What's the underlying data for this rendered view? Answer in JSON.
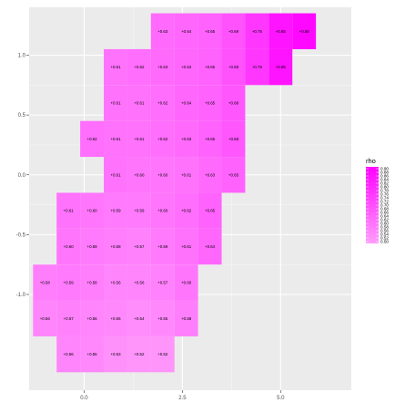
{
  "chart_data": {
    "type": "heatmap",
    "title": "",
    "xlabel": "",
    "ylabel": "",
    "xlim": [
      -1.4,
      6.8
    ],
    "ylim": [
      -1.8,
      1.4
    ],
    "x_ticks": [
      0.0,
      2.5,
      5.0
    ],
    "x_tick_labels": [
      "0.0",
      "2.5",
      "5.0"
    ],
    "y_ticks": [
      -1.0,
      -0.5,
      0.0,
      0.5,
      1.0
    ],
    "y_tick_labels": [
      "-1.0",
      "-0.5",
      "0.0",
      "0.5",
      "1.0"
    ],
    "grid": true,
    "legend": {
      "title": "rho",
      "position": "right",
      "labels": [
        "0.90",
        "0.88",
        "0.86",
        "0.84",
        "0.82",
        "0.80",
        "0.78",
        "0.76",
        "0.74",
        "0.72",
        "0.70",
        "0.68",
        "0.66",
        "0.64",
        "0.62",
        "0.60",
        "0.58",
        "0.56",
        "0.54",
        "0.52",
        "0.50"
      ]
    },
    "colors": {
      "low": "#ff9dfb",
      "high": "#ff00ff",
      "panel": "#ebebeb",
      "grid": "#ffffff"
    },
    "rows": [
      {
        "y": 1.2,
        "cells": [
          {
            "x": 2.0,
            "value": 0.63,
            "label": "+0.63"
          },
          {
            "x": 2.6,
            "value": 0.64,
            "label": "+0.64"
          },
          {
            "x": 3.2,
            "value": 0.65,
            "label": "+0.65"
          },
          {
            "x": 3.8,
            "value": 0.69,
            "label": "+0.69"
          },
          {
            "x": 4.4,
            "value": 0.76,
            "label": "+0.76"
          },
          {
            "x": 5.0,
            "value": 0.85,
            "label": "+0.85"
          },
          {
            "x": 5.6,
            "value": 0.88,
            "label": "+0.88"
          }
        ]
      },
      {
        "y": 0.9,
        "cells": [
          {
            "x": 0.8,
            "value": 0.61,
            "label": "+0.61"
          },
          {
            "x": 1.4,
            "value": 0.62,
            "label": "+0.62"
          },
          {
            "x": 2.0,
            "value": 0.63,
            "label": "+0.63"
          },
          {
            "x": 2.6,
            "value": 0.64,
            "label": "+0.64"
          },
          {
            "x": 3.2,
            "value": 0.65,
            "label": "+0.65"
          },
          {
            "x": 3.8,
            "value": 0.69,
            "label": "+0.69"
          },
          {
            "x": 4.4,
            "value": 0.76,
            "label": "+0.76"
          },
          {
            "x": 5.0,
            "value": 0.85,
            "label": "+0.85"
          }
        ]
      },
      {
        "y": 0.6,
        "cells": [
          {
            "x": 0.8,
            "value": 0.61,
            "label": "+0.61"
          },
          {
            "x": 1.4,
            "value": 0.61,
            "label": "+0.61"
          },
          {
            "x": 2.0,
            "value": 0.62,
            "label": "+0.62"
          },
          {
            "x": 2.6,
            "value": 0.64,
            "label": "+0.64"
          },
          {
            "x": 3.2,
            "value": 0.65,
            "label": "+0.65"
          },
          {
            "x": 3.8,
            "value": 0.68,
            "label": "+0.68"
          }
        ]
      },
      {
        "y": 0.3,
        "cells": [
          {
            "x": 0.2,
            "value": 0.62,
            "label": "+0.62"
          },
          {
            "x": 0.8,
            "value": 0.61,
            "label": "+0.61"
          },
          {
            "x": 1.4,
            "value": 0.61,
            "label": "+0.61"
          },
          {
            "x": 2.0,
            "value": 0.62,
            "label": "+0.62"
          },
          {
            "x": 2.6,
            "value": 0.63,
            "label": "+0.63"
          },
          {
            "x": 3.2,
            "value": 0.65,
            "label": "+0.65"
          },
          {
            "x": 3.8,
            "value": 0.68,
            "label": "+0.68"
          }
        ]
      },
      {
        "y": 0.0,
        "cells": [
          {
            "x": 0.8,
            "value": 0.61,
            "label": "+0.61"
          },
          {
            "x": 1.4,
            "value": 0.6,
            "label": "+0.60"
          },
          {
            "x": 2.0,
            "value": 0.6,
            "label": "+0.60"
          },
          {
            "x": 2.6,
            "value": 0.61,
            "label": "+0.61"
          },
          {
            "x": 3.2,
            "value": 0.63,
            "label": "+0.63"
          },
          {
            "x": 3.8,
            "value": 0.65,
            "label": "+0.65"
          }
        ]
      },
      {
        "y": -0.3,
        "cells": [
          {
            "x": -0.4,
            "value": 0.61,
            "label": "+0.61"
          },
          {
            "x": 0.2,
            "value": 0.6,
            "label": "+0.60"
          },
          {
            "x": 0.8,
            "value": 0.59,
            "label": "+0.59"
          },
          {
            "x": 1.4,
            "value": 0.59,
            "label": "+0.59"
          },
          {
            "x": 2.0,
            "value": 0.6,
            "label": "+0.60"
          },
          {
            "x": 2.6,
            "value": 0.62,
            "label": "+0.62"
          },
          {
            "x": 3.2,
            "value": 0.65,
            "label": "+0.65"
          }
        ]
      },
      {
        "y": -0.6,
        "cells": [
          {
            "x": -0.4,
            "value": 0.6,
            "label": "+0.60"
          },
          {
            "x": 0.2,
            "value": 0.59,
            "label": "+0.59"
          },
          {
            "x": 0.8,
            "value": 0.58,
            "label": "+0.58"
          },
          {
            "x": 1.4,
            "value": 0.57,
            "label": "+0.57"
          },
          {
            "x": 2.0,
            "value": 0.59,
            "label": "+0.59"
          },
          {
            "x": 2.6,
            "value": 0.61,
            "label": "+0.61"
          },
          {
            "x": 3.2,
            "value": 0.64,
            "label": "+0.64"
          }
        ]
      },
      {
        "y": -0.9,
        "cells": [
          {
            "x": -1.0,
            "value": 0.58,
            "label": "+0.58"
          },
          {
            "x": -0.4,
            "value": 0.59,
            "label": "+0.59"
          },
          {
            "x": 0.2,
            "value": 0.58,
            "label": "+0.58"
          },
          {
            "x": 0.8,
            "value": 0.56,
            "label": "+0.56"
          },
          {
            "x": 1.4,
            "value": 0.56,
            "label": "+0.56"
          },
          {
            "x": 2.0,
            "value": 0.57,
            "label": "+0.57"
          },
          {
            "x": 2.6,
            "value": 0.6,
            "label": "+0.60"
          }
        ]
      },
      {
        "y": -1.2,
        "cells": [
          {
            "x": -1.0,
            "value": 0.56,
            "label": "+0.56"
          },
          {
            "x": -0.4,
            "value": 0.57,
            "label": "+0.57"
          },
          {
            "x": 0.2,
            "value": 0.56,
            "label": "+0.56"
          },
          {
            "x": 0.8,
            "value": 0.55,
            "label": "+0.55"
          },
          {
            "x": 1.4,
            "value": 0.54,
            "label": "+0.54"
          },
          {
            "x": 2.0,
            "value": 0.55,
            "label": "+0.55"
          },
          {
            "x": 2.6,
            "value": 0.58,
            "label": "+0.58"
          }
        ]
      },
      {
        "y": -1.5,
        "cells": [
          {
            "x": -0.4,
            "value": 0.56,
            "label": "+0.56"
          },
          {
            "x": 0.2,
            "value": 0.55,
            "label": "+0.55"
          },
          {
            "x": 0.8,
            "value": 0.53,
            "label": "+0.53"
          },
          {
            "x": 1.4,
            "value": 0.52,
            "label": "+0.52"
          },
          {
            "x": 2.0,
            "value": 0.52,
            "label": "+0.52"
          }
        ]
      }
    ]
  }
}
